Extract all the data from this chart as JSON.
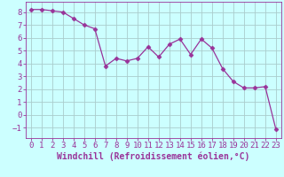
{
  "x": [
    0,
    1,
    2,
    3,
    4,
    5,
    6,
    7,
    8,
    9,
    10,
    11,
    12,
    13,
    14,
    15,
    16,
    17,
    18,
    19,
    20,
    21,
    22,
    23
  ],
  "y": [
    8.2,
    8.2,
    8.1,
    8.0,
    7.5,
    7.0,
    6.7,
    3.8,
    4.4,
    4.2,
    4.4,
    5.3,
    4.5,
    5.5,
    5.9,
    4.7,
    5.9,
    5.2,
    3.6,
    2.6,
    2.1,
    2.1,
    2.2,
    -1.1
  ],
  "line_color": "#993399",
  "marker": "D",
  "marker_size": 2.5,
  "background_color": "#ccffff",
  "grid_color": "#aacccc",
  "xlabel": "Windchill (Refroidissement éolien,°C)",
  "xlim": [
    -0.5,
    23.5
  ],
  "ylim": [
    -1.8,
    8.8
  ],
  "yticks": [
    -1,
    0,
    1,
    2,
    3,
    4,
    5,
    6,
    7,
    8
  ],
  "xticks": [
    0,
    1,
    2,
    3,
    4,
    5,
    6,
    7,
    8,
    9,
    10,
    11,
    12,
    13,
    14,
    15,
    16,
    17,
    18,
    19,
    20,
    21,
    22,
    23
  ],
  "tick_color": "#993399",
  "label_color": "#993399",
  "xlabel_fontsize": 7,
  "tick_fontsize": 6.5
}
